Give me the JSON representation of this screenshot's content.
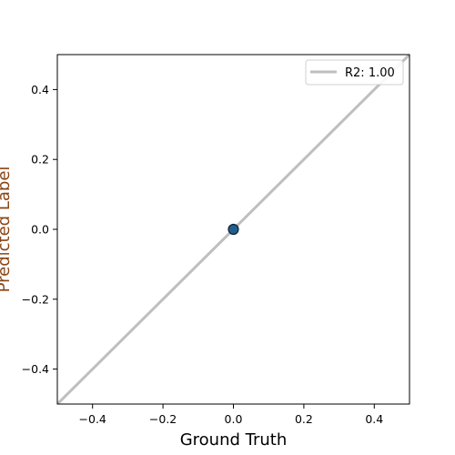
{
  "chart_data": {
    "type": "scatter",
    "xlabel": "Ground Truth",
    "ylabel": "Predicted Label",
    "xlim": [
      -0.5,
      0.5
    ],
    "ylim": [
      -0.5,
      0.5
    ],
    "xticks": [
      -0.4,
      -0.2,
      0.0,
      0.2,
      0.4
    ],
    "yticks": [
      -0.4,
      -0.2,
      0.0,
      0.2,
      0.4
    ],
    "xtick_labels": [
      "−0.4",
      "−0.2",
      "0.0",
      "0.2",
      "0.4"
    ],
    "ytick_labels": [
      "−0.4",
      "−0.2",
      "0.0",
      "0.2",
      "0.4"
    ],
    "grid": false,
    "legend": {
      "position": "top-right",
      "entries": [
        "R2: 1.00"
      ]
    },
    "reference_line": {
      "label": "R2: 1.00",
      "x": [
        -0.5,
        0.5
      ],
      "y": [
        -0.5,
        0.5
      ],
      "color": "#bfbfbf"
    },
    "series": [
      {
        "points": [
          {
            "x": 0.0,
            "y": 0.0
          }
        ],
        "color": "#1f5f8b",
        "edgecolor": "#0a1f33"
      }
    ],
    "colors": {
      "ylabel": "#8b4513",
      "axis": "#000000",
      "text": "#000000"
    }
  }
}
